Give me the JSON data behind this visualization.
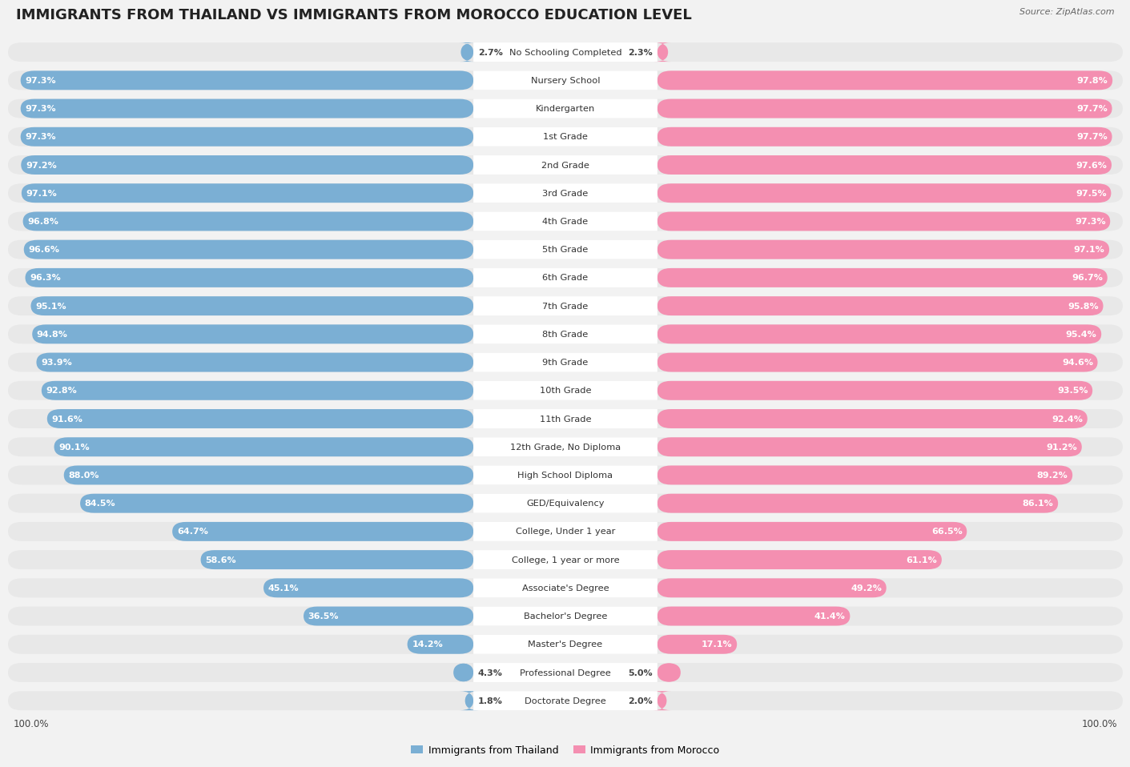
{
  "title": "IMMIGRANTS FROM THAILAND VS IMMIGRANTS FROM MOROCCO EDUCATION LEVEL",
  "source": "Source: ZipAtlas.com",
  "categories": [
    "No Schooling Completed",
    "Nursery School",
    "Kindergarten",
    "1st Grade",
    "2nd Grade",
    "3rd Grade",
    "4th Grade",
    "5th Grade",
    "6th Grade",
    "7th Grade",
    "8th Grade",
    "9th Grade",
    "10th Grade",
    "11th Grade",
    "12th Grade, No Diploma",
    "High School Diploma",
    "GED/Equivalency",
    "College, Under 1 year",
    "College, 1 year or more",
    "Associate's Degree",
    "Bachelor's Degree",
    "Master's Degree",
    "Professional Degree",
    "Doctorate Degree"
  ],
  "thailand": [
    2.7,
    97.3,
    97.3,
    97.3,
    97.2,
    97.1,
    96.8,
    96.6,
    96.3,
    95.1,
    94.8,
    93.9,
    92.8,
    91.6,
    90.1,
    88.0,
    84.5,
    64.7,
    58.6,
    45.1,
    36.5,
    14.2,
    4.3,
    1.8
  ],
  "morocco": [
    2.3,
    97.8,
    97.7,
    97.7,
    97.6,
    97.5,
    97.3,
    97.1,
    96.7,
    95.8,
    95.4,
    94.6,
    93.5,
    92.4,
    91.2,
    89.2,
    86.1,
    66.5,
    61.1,
    49.2,
    41.4,
    17.1,
    5.0,
    2.0
  ],
  "thailand_color": "#7bafd4",
  "morocco_color": "#f48fb1",
  "bg_color": "#f2f2f2",
  "row_bg_color": "#e8e8e8",
  "bar_bg_color": "#ffffff",
  "title_fontsize": 13,
  "value_fontsize": 8.0,
  "cat_fontsize": 8.2,
  "max_val": 100.0
}
